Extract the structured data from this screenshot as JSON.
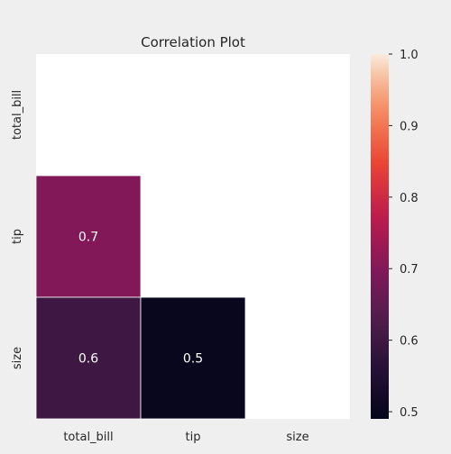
{
  "chart_data": {
    "type": "heatmap",
    "title": "Correlation Plot",
    "variables": [
      "total_bill",
      "tip",
      "size"
    ],
    "matrix": [
      [
        null,
        null,
        null
      ],
      [
        0.7,
        null,
        null
      ],
      [
        0.6,
        0.5,
        null
      ]
    ],
    "mask": "upper triangle including diagonal",
    "colorbar": {
      "colormap": "rocket",
      "range": [
        0.49,
        1.0
      ],
      "ticks": [
        "0.5",
        "0.6",
        "0.7",
        "0.8",
        "0.9",
        "1.0"
      ]
    },
    "colors": {
      "background": "#efefef",
      "masked_cell": "#ffffff",
      "cell_border": "#ffffff",
      "annotation_text": "#ffffff",
      "tick_text": "#262626"
    }
  }
}
